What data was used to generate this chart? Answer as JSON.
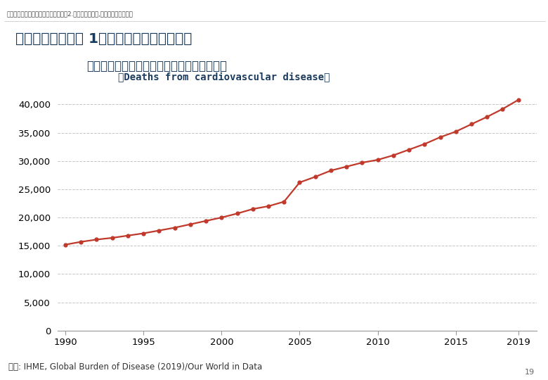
{
  "years": [
    1990,
    1991,
    1992,
    1993,
    1994,
    1995,
    1996,
    1997,
    1998,
    1999,
    2000,
    2001,
    2002,
    2003,
    2004,
    2005,
    2006,
    2007,
    2008,
    2009,
    2010,
    2011,
    2012,
    2013,
    2014,
    2015,
    2016,
    2017,
    2018,
    2019
  ],
  "deaths": [
    15200,
    15700,
    16100,
    16400,
    16800,
    17200,
    17700,
    18200,
    18800,
    19400,
    20000,
    20700,
    21500,
    22000,
    22800,
    26200,
    27200,
    28300,
    29000,
    29700,
    30200,
    31000,
    32000,
    33000,
    34200,
    35200,
    36500,
    37800,
    39200,
    40800
  ],
  "line_color": "#c0392b",
  "marker_color": "#c0392b",
  "bg_color": "#ffffff",
  "plot_bg": "#ffffff",
  "grid_color": "#bbbbbb",
  "yticks": [
    0,
    5000,
    10000,
    15000,
    20000,
    25000,
    30000,
    35000,
    40000
  ],
  "xticks": [
    1990,
    1995,
    2000,
    2005,
    2010,
    2015,
    2019
  ],
  "ylim": [
    0,
    42000
  ],
  "xlim": [
    1989.5,
    2020.2
  ],
  "survey_label_bg": "#2980b9",
  "survey_label_color": "#ffffff",
  "survey_title_bg": "#b8cce4",
  "title_header_color": "#1a3a5c",
  "page_num": "19"
}
